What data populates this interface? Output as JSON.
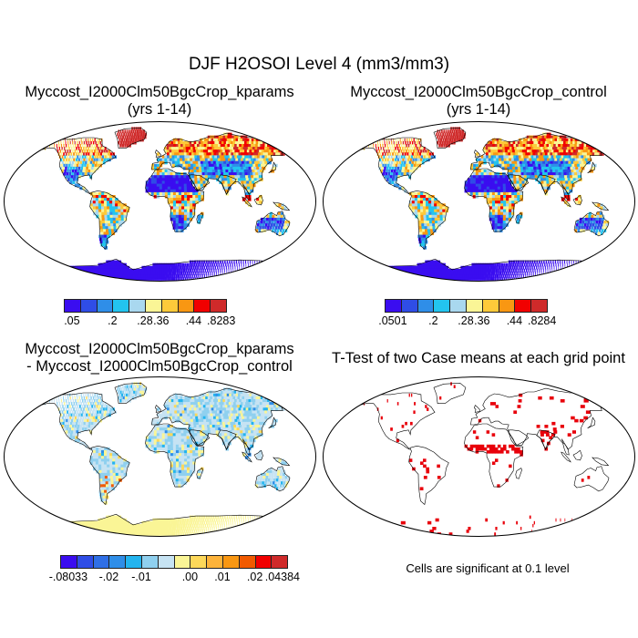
{
  "figure": {
    "title": "DJF H2OSOI Level 4 (mm3/mm3)"
  },
  "panels": [
    {
      "id": "kparams",
      "title_line1": "Myccost_I2000Clm50BgcCrop_kparams",
      "title_line2": "(yrs 1-14)",
      "colorbar": {
        "colors": [
          "#3a0df0",
          "#2f4de6",
          "#2f8ee8",
          "#23c4ef",
          "#a9d8ef",
          "#faf596",
          "#fdca3a",
          "#f99712",
          "#f10000",
          "#cf2a2a"
        ],
        "tick_labels": [
          ".05",
          ".2",
          ".28",
          ".36",
          ".44",
          ".8283"
        ]
      }
    },
    {
      "id": "control",
      "title_line1": "Myccost_I2000Clm50BgcCrop_control",
      "title_line2": "(yrs 1-14)",
      "colorbar": {
        "colors": [
          "#3a0df0",
          "#2f4de6",
          "#2f8ee8",
          "#23c4ef",
          "#a9d8ef",
          "#faf596",
          "#fdca3a",
          "#f99712",
          "#f10000",
          "#cf2a2a"
        ],
        "tick_labels": [
          ".0501",
          ".2",
          ".28",
          ".36",
          ".44",
          ".8284"
        ]
      }
    },
    {
      "id": "difference",
      "title_line1": "Myccost_I2000Clm50BgcCrop_kparams",
      "title_line2": "- Myccost_I2000Clm50BgcCrop_control",
      "colorbar": {
        "colors": [
          "#3a0df0",
          "#2f4de6",
          "#2f6fe6",
          "#2f8ee8",
          "#23b4ef",
          "#8fd0ef",
          "#c6e3f3",
          "#faf596",
          "#fdd85a",
          "#fdb33a",
          "#f99712",
          "#f15a00",
          "#f10000",
          "#cf2a2a"
        ],
        "tick_labels": [
          "-.08033",
          "-.02",
          "-.01",
          ".00",
          ".01",
          ".02",
          ".04384"
        ]
      }
    },
    {
      "id": "ttest",
      "title_line1": "T-Test of two Case means at each grid point",
      "note": "Cells are significant at 0.1 level"
    }
  ],
  "colors": {
    "land_wet_high": "#cf2a2a",
    "land_dry_low": "#3a0df0",
    "significant": "#e8000b",
    "outline": "#000000"
  }
}
